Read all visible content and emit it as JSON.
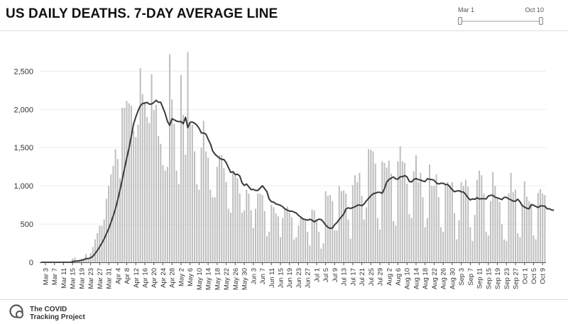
{
  "header": {
    "title": "US DAILY DEATHS. 7-DAY AVERAGE LINE"
  },
  "range_slider": {
    "start_label": "Mar 1",
    "end_label": "Oct 10"
  },
  "footer": {
    "brand_line1": "The COVID",
    "brand_line2": "Tracking Project"
  },
  "colors": {
    "bars": "#bdbdbd",
    "line": "#3a3a3a",
    "axis": "#555555",
    "grid": "#ececec"
  },
  "chart_data": {
    "type": "bar",
    "title": "US DAILY DEATHS. 7-DAY AVERAGE LINE",
    "xlabel": "",
    "ylabel": "",
    "ylim": [
      0,
      2800
    ],
    "grid": true,
    "legend": "none",
    "y_ticks": [
      0,
      500,
      1000,
      1500,
      2000,
      2500
    ],
    "y_tick_labels": [
      "0",
      "500",
      "1,000",
      "1,500",
      "2,000",
      "2,500"
    ],
    "x_tick_labels": [
      "Mar 3",
      "Mar 7",
      "Mar 11",
      "Mar 15",
      "Mar 19",
      "Mar 23",
      "Mar 27",
      "Mar 31",
      "Apr 4",
      "Apr 8",
      "Apr 12",
      "Apr 16",
      "Apr 20",
      "Apr 24",
      "Apr 28",
      "May 2",
      "May 6",
      "May 10",
      "May 14",
      "May 18",
      "May 22",
      "May 26",
      "May 30",
      "Jun 3",
      "Jun 7",
      "Jun 11",
      "Jun 15",
      "Jun 19",
      "Jun 23",
      "Jun 27",
      "Jul 1",
      "Jul 5",
      "Jul 9",
      "Jul 13",
      "Jul 17",
      "Jul 21",
      "Jul 25",
      "Jul 29",
      "Aug 2",
      "Aug 6",
      "Aug 10",
      "Aug 14",
      "Aug 18",
      "Aug 22",
      "Aug 26",
      "Aug 30",
      "Sep 3",
      "Sep 7",
      "Sep 11",
      "Sep 15",
      "Sep 19",
      "Sep 23",
      "Sep 27",
      "Oct 1",
      "Oct 5",
      "Oct 9"
    ],
    "first_date": "Mar 1",
    "last_date": "Oct 10",
    "series": [
      {
        "name": "Daily deaths",
        "type": "bar",
        "values": [
          0,
          0,
          0,
          0,
          0,
          0,
          0,
          0,
          0,
          0,
          0,
          0,
          0,
          0,
          50,
          60,
          10,
          30,
          50,
          50,
          110,
          40,
          120,
          200,
          300,
          380,
          480,
          480,
          560,
          830,
          1000,
          1150,
          1260,
          1480,
          1350,
          1100,
          2020,
          2020,
          2110,
          2080,
          2050,
          1720,
          1640,
          1800,
          2540,
          2200,
          2100,
          1900,
          1820,
          2460,
          1990,
          2060,
          1650,
          1550,
          1270,
          1200,
          1250,
          2720,
          2130,
          1810,
          1200,
          1020,
          2450,
          1930,
          1410,
          2750,
          1810,
          1800,
          1450,
          1020,
          950,
          1500,
          1850,
          1450,
          1370,
          950,
          850,
          850,
          1250,
          1400,
          1400,
          1230,
          1050,
          700,
          650,
          1180,
          1150,
          1100,
          900,
          650,
          680,
          950,
          900,
          680,
          450,
          700,
          900,
          900,
          880,
          670,
          340,
          400,
          750,
          720,
          640,
          600,
          330,
          580,
          700,
          730,
          650,
          590,
          300,
          330,
          480,
          600,
          580,
          560,
          400,
          220,
          690,
          680,
          550,
          400,
          180,
          250,
          930,
          870,
          880,
          800,
          420,
          420,
          1000,
          930,
          940,
          900,
          560,
          310,
          1010,
          1140,
          1050,
          1170,
          870,
          560,
          720,
          1480,
          1470,
          1450,
          1290,
          580,
          430,
          1320,
          1300,
          1240,
          1330,
          1160,
          540,
          480,
          1320,
          1520,
          1320,
          1300,
          1030,
          630,
          580,
          1190,
          1400,
          1050,
          1170,
          850,
          460,
          580,
          1280,
          1000,
          1000,
          1150,
          850,
          460,
          400,
          1010,
          1050,
          1010,
          1050,
          640,
          300,
          550,
          1050,
          1000,
          1080,
          990,
          460,
          280,
          620,
          1080,
          1200,
          1140,
          900,
          400,
          350,
          800,
          1180,
          1000,
          850,
          790,
          500,
          300,
          280,
          900,
          1170,
          920,
          950,
          380,
          330,
          760,
          1060,
          860,
          800,
          740,
          350,
          300,
          910,
          960,
          900,
          880
        ]
      },
      {
        "name": "7-day average",
        "type": "line",
        "values": [
          0,
          0,
          0,
          0,
          0,
          0,
          0,
          0,
          0,
          0,
          0,
          0,
          0,
          0,
          7,
          16,
          17,
          21,
          27,
          34,
          50,
          49,
          59,
          79,
          115,
          156,
          203,
          252,
          306,
          374,
          439,
          520,
          608,
          701,
          816,
          946,
          1081,
          1227,
          1364,
          1494,
          1649,
          1807,
          1901,
          1981,
          2047,
          2077,
          2081,
          2091,
          2068,
          2071,
          2090,
          2118,
          2093,
          2093,
          2021,
          1946,
          1844,
          1791,
          1877,
          1864,
          1847,
          1839,
          1842,
          1812,
          1896,
          1761,
          1831,
          1834,
          1820,
          1794,
          1753,
          1692,
          1690,
          1678,
          1610,
          1550,
          1457,
          1415,
          1387,
          1363,
          1347,
          1343,
          1303,
          1239,
          1176,
          1185,
          1148,
          1151,
          1129,
          1041,
          1005,
          1024,
          987,
          951,
          954,
          940,
          940,
          970,
          1001,
          964,
          924,
          828,
          793,
          787,
          764,
          755,
          746,
          727,
          699,
          683,
          669,
          670,
          657,
          645,
          613,
          591,
          566,
          560,
          551,
          563,
          551,
          528,
          550,
          564,
          559,
          529,
          487,
          459,
          444,
          449,
          492,
          520,
          561,
          594,
          632,
          698,
          713,
          704,
          716,
          726,
          745,
          751,
          740,
          762,
          803,
          835,
          870,
          896,
          905,
          916,
          915,
          903,
          961,
          1048,
          1082,
          1101,
          1116,
          1091,
          1088,
          1120,
          1119,
          1135,
          1117,
          1059,
          1050,
          1083,
          1096,
          1081,
          1076,
          1063,
          1056,
          1093,
          1085,
          1083,
          1073,
          1038,
          1025,
          1034,
          1034,
          1018,
          1018,
          986,
          950,
          923,
          932,
          937,
          922,
          919,
          887,
          845,
          816,
          830,
          823,
          845,
          829,
          832,
          832,
          828,
          867,
          876,
          876,
          851,
          843,
          833,
          820,
          850,
          850,
          830,
          817,
          800,
          800,
          825,
          791,
          741,
          723,
          707,
          700,
          756,
          746,
          731,
          717,
          738,
          737,
          734,
          700,
          700,
          685,
          680
        ]
      }
    ]
  }
}
